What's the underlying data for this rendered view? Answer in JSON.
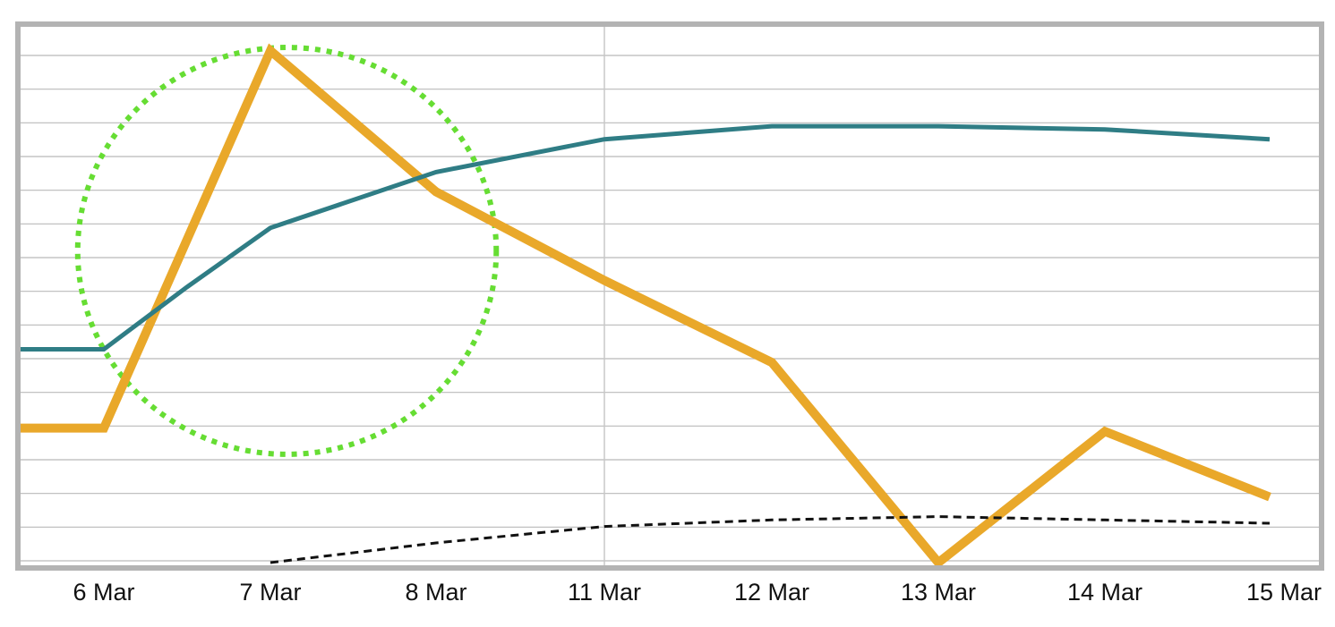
{
  "chart_data": {
    "type": "line",
    "title": "",
    "xlabel": "",
    "ylabel": "",
    "categories": [
      "6 Mar",
      "7 Mar",
      "8 Mar",
      "11 Mar",
      "12 Mar",
      "13 Mar",
      "14 Mar",
      "15 Mar"
    ],
    "ylim": [
      0,
      16
    ],
    "grid": true,
    "legend": "none",
    "series": [
      {
        "color": "#e9a82a",
        "style": "solid-thick",
        "points": [
          [
            -0.5,
            4.1
          ],
          [
            0,
            4.1
          ],
          [
            1,
            15.6
          ],
          [
            2,
            11.3
          ],
          [
            3,
            8.6
          ],
          [
            4,
            6.1
          ],
          [
            5,
            0
          ],
          [
            6,
            4.0
          ],
          [
            7,
            2.0
          ]
        ]
      },
      {
        "color": "#2f7d85",
        "style": "solid",
        "points": [
          [
            -0.5,
            6.5
          ],
          [
            0,
            6.5
          ],
          [
            0.5,
            8.4
          ],
          [
            1,
            10.2
          ],
          [
            2,
            11.9
          ],
          [
            3,
            12.9
          ],
          [
            4,
            13.3
          ],
          [
            5,
            13.3
          ],
          [
            6,
            13.2
          ],
          [
            7,
            12.9
          ]
        ]
      },
      {
        "color": "#111111",
        "style": "dashed",
        "points": [
          [
            1,
            0
          ],
          [
            2,
            0.6
          ],
          [
            3,
            1.1
          ],
          [
            4,
            1.3
          ],
          [
            5,
            1.4
          ],
          [
            6,
            1.3
          ],
          [
            7,
            1.2
          ]
        ]
      }
    ],
    "annotation": {
      "shape": "dotted-ellipse",
      "color": "#66dd33",
      "center": [
        1.1,
        9.5
      ],
      "rx_categories": 1.25,
      "ry_units": 6.2
    }
  }
}
